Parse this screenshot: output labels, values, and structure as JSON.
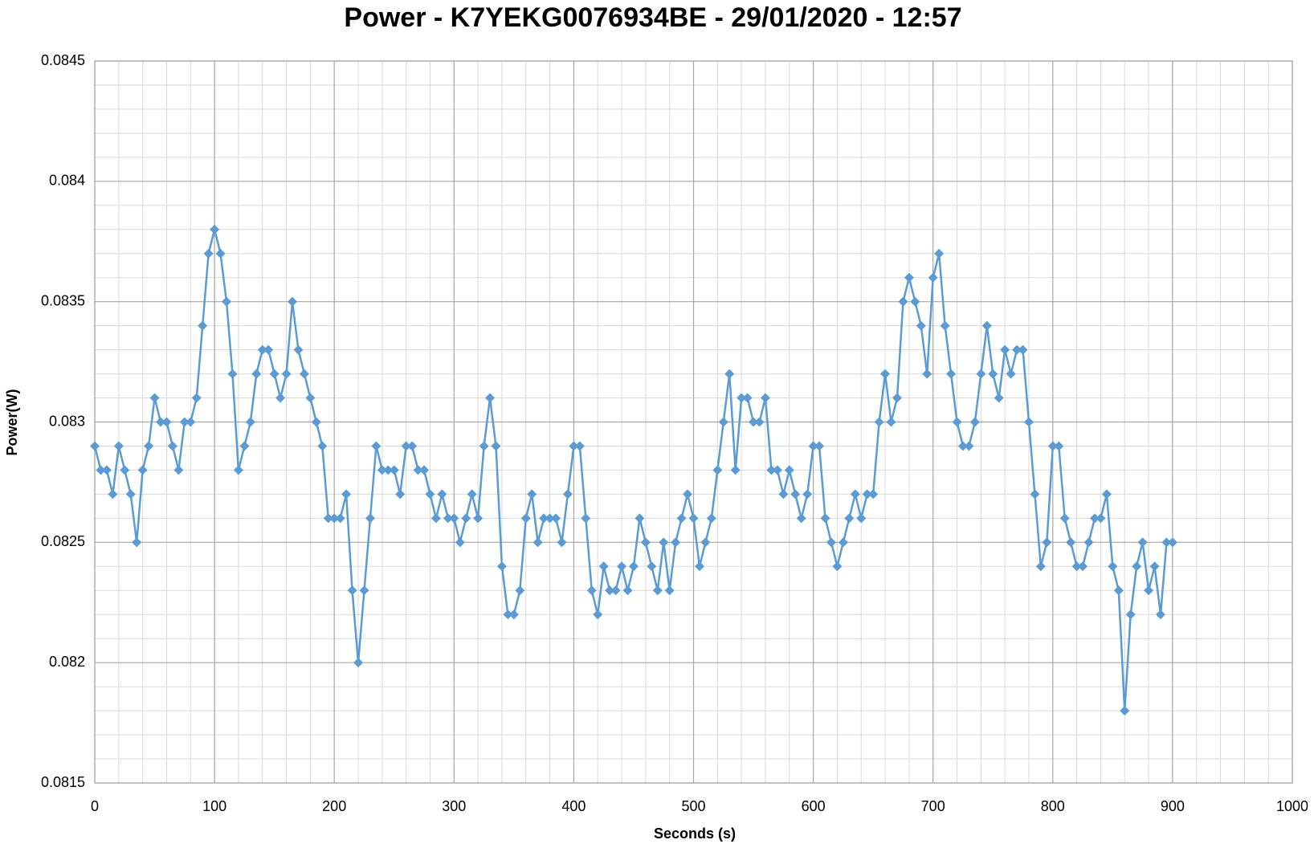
{
  "chart_data": {
    "type": "line",
    "title": "Power - K7YEKG0076934BE - 29/01/2020 - 12:57",
    "x_label": "Seconds (s)",
    "y_label": "Power(W)",
    "color": "#5b9bd5",
    "marker": "diamond",
    "grid": true,
    "minor_divisions": 5,
    "xlim": [
      0,
      1000
    ],
    "xticks": [
      0,
      100,
      200,
      300,
      400,
      500,
      600,
      700,
      800,
      900,
      1000
    ],
    "ylim": [
      0.0815,
      0.0845
    ],
    "yticks": [
      0.0815,
      0.082,
      0.0825,
      0.083,
      0.0835,
      0.084,
      0.0845
    ],
    "x": [
      0,
      5,
      10,
      15,
      20,
      25,
      30,
      35,
      40,
      45,
      50,
      55,
      60,
      65,
      70,
      75,
      80,
      85,
      90,
      95,
      100,
      105,
      110,
      115,
      120,
      125,
      130,
      135,
      140,
      145,
      150,
      155,
      160,
      165,
      170,
      175,
      180,
      185,
      190,
      195,
      200,
      205,
      210,
      215,
      220,
      225,
      230,
      235,
      240,
      245,
      250,
      255,
      260,
      265,
      270,
      275,
      280,
      285,
      290,
      295,
      300,
      305,
      310,
      315,
      320,
      325,
      330,
      335,
      340,
      345,
      350,
      355,
      360,
      365,
      370,
      375,
      380,
      385,
      390,
      395,
      400,
      405,
      410,
      415,
      420,
      425,
      430,
      435,
      440,
      445,
      450,
      455,
      460,
      465,
      470,
      475,
      480,
      485,
      490,
      495,
      500,
      505,
      510,
      515,
      520,
      525,
      530,
      535,
      540,
      545,
      550,
      555,
      560,
      565,
      570,
      575,
      580,
      585,
      590,
      595,
      600,
      605,
      610,
      615,
      620,
      625,
      630,
      635,
      640,
      645,
      650,
      655,
      660,
      665,
      670,
      675,
      680,
      685,
      690,
      695,
      700,
      705,
      710,
      715,
      720,
      725,
      730,
      735,
      740,
      745,
      750,
      755,
      760,
      765,
      770,
      775,
      780,
      785,
      790,
      795,
      800,
      805,
      810,
      815,
      820,
      825,
      830,
      835,
      840,
      845,
      850,
      855,
      860,
      865,
      870,
      875,
      880,
      885,
      890,
      895,
      900
    ],
    "values": [
      0.0829,
      0.0828,
      0.0828,
      0.0827,
      0.0829,
      0.0828,
      0.0827,
      0.0825,
      0.0828,
      0.0829,
      0.0831,
      0.083,
      0.083,
      0.0829,
      0.0828,
      0.083,
      0.083,
      0.0831,
      0.0834,
      0.0837,
      0.0838,
      0.0837,
      0.0835,
      0.0832,
      0.0828,
      0.0829,
      0.083,
      0.0832,
      0.0833,
      0.0833,
      0.0832,
      0.0831,
      0.0832,
      0.0835,
      0.0833,
      0.0832,
      0.0831,
      0.083,
      0.0829,
      0.0826,
      0.0826,
      0.0826,
      0.0827,
      0.0823,
      0.082,
      0.0823,
      0.0826,
      0.0829,
      0.0828,
      0.0828,
      0.0828,
      0.0827,
      0.0829,
      0.0829,
      0.0828,
      0.0828,
      0.0827,
      0.0826,
      0.0827,
      0.0826,
      0.0826,
      0.0825,
      0.0826,
      0.0827,
      0.0826,
      0.0829,
      0.0831,
      0.0829,
      0.0824,
      0.0822,
      0.0822,
      0.0823,
      0.0826,
      0.0827,
      0.0825,
      0.0826,
      0.0826,
      0.0826,
      0.0825,
      0.0827,
      0.0829,
      0.0829,
      0.0826,
      0.0823,
      0.0822,
      0.0824,
      0.0823,
      0.0823,
      0.0824,
      0.0823,
      0.0824,
      0.0826,
      0.0825,
      0.0824,
      0.0823,
      0.0825,
      0.0823,
      0.0825,
      0.0826,
      0.0827,
      0.0826,
      0.0824,
      0.0825,
      0.0826,
      0.0828,
      0.083,
      0.0832,
      0.0828,
      0.0831,
      0.0831,
      0.083,
      0.083,
      0.0831,
      0.0828,
      0.0828,
      0.0827,
      0.0828,
      0.0827,
      0.0826,
      0.0827,
      0.0829,
      0.0829,
      0.0826,
      0.0825,
      0.0824,
      0.0825,
      0.0826,
      0.0827,
      0.0826,
      0.0827,
      0.0827,
      0.083,
      0.0832,
      0.083,
      0.0831,
      0.0835,
      0.0836,
      0.0835,
      0.0834,
      0.0832,
      0.0836,
      0.0837,
      0.0834,
      0.0832,
      0.083,
      0.0829,
      0.0829,
      0.083,
      0.0832,
      0.0834,
      0.0832,
      0.0831,
      0.0833,
      0.0832,
      0.0833,
      0.0833,
      0.083,
      0.0827,
      0.0824,
      0.0825,
      0.0829,
      0.0829,
      0.0826,
      0.0825,
      0.0824,
      0.0824,
      0.0825,
      0.0826,
      0.0826,
      0.0827,
      0.0824,
      0.0823,
      0.0818,
      0.0822,
      0.0824,
      0.0825,
      0.0823,
      0.0824,
      0.0822,
      0.0825,
      0.0825
    ]
  }
}
